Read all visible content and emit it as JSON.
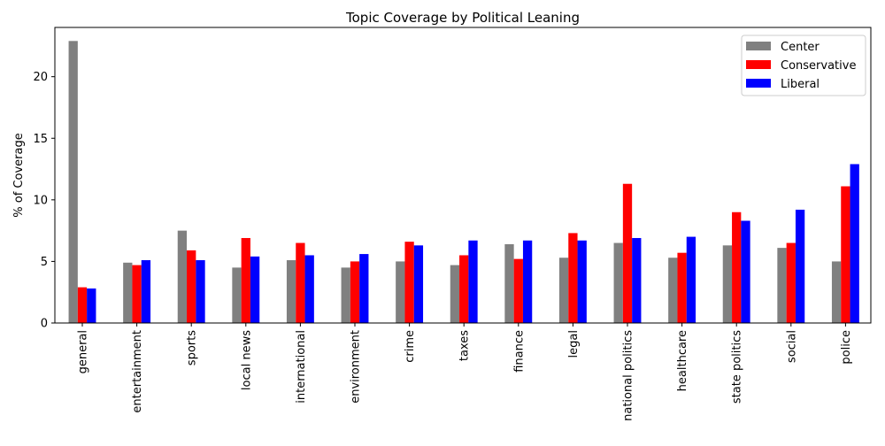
{
  "chart_data": {
    "type": "bar",
    "title": "Topic Coverage by Political Leaning",
    "xlabel": "",
    "ylabel": "% of Coverage",
    "ylim": [
      0,
      24
    ],
    "yticks": [
      0,
      5,
      10,
      15,
      20
    ],
    "grid": false,
    "legend_position": "top-right",
    "categories": [
      "general",
      "entertainment",
      "sports",
      "local news",
      "international",
      "environment",
      "crime",
      "taxes",
      "finance",
      "legal",
      "national politics",
      "healthcare",
      "state politics",
      "social",
      "police"
    ],
    "series": [
      {
        "name": "Center",
        "color": "#808080",
        "values": [
          22.9,
          4.9,
          7.5,
          4.5,
          5.1,
          4.5,
          5.0,
          4.7,
          6.4,
          5.3,
          6.5,
          5.3,
          6.3,
          6.1,
          5.0
        ]
      },
      {
        "name": "Conservative",
        "color": "#ff0000",
        "values": [
          2.9,
          4.7,
          5.9,
          6.9,
          6.5,
          5.0,
          6.6,
          5.5,
          5.2,
          7.3,
          11.3,
          5.7,
          9.0,
          6.5,
          11.1
        ]
      },
      {
        "name": "Liberal",
        "color": "#0000ff",
        "values": [
          2.8,
          5.1,
          5.1,
          5.4,
          5.5,
          5.6,
          6.3,
          6.7,
          6.7,
          6.7,
          6.9,
          7.0,
          8.3,
          9.2,
          12.9
        ]
      }
    ]
  }
}
